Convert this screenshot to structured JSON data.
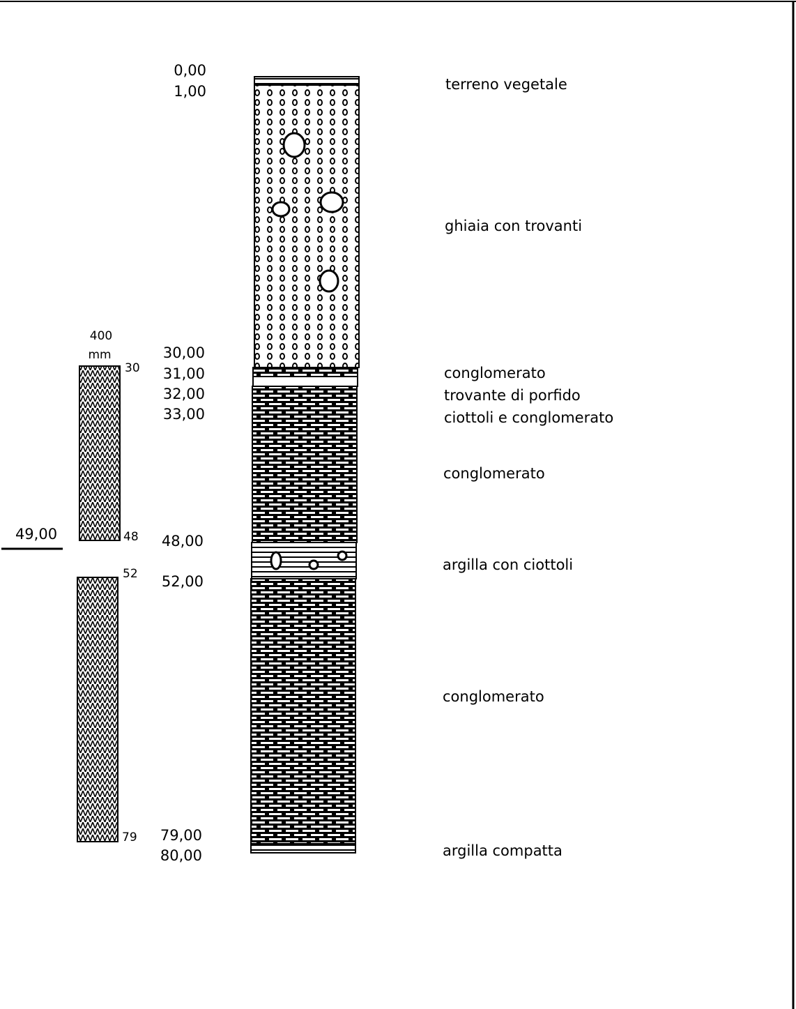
{
  "depths": [
    "0,00",
    "1,00",
    "30,00",
    "31,00",
    "32,00",
    "33,00",
    "48,00",
    "52,00",
    "79,00",
    "80,00"
  ],
  "layers": [
    "terreno vegetale",
    "ghiaia con trovanti",
    "conglomerato",
    "trovante di porfido",
    "ciottoli e conglomerato",
    "conglomerato",
    "argilla con ciottoli",
    "conglomerato",
    "argilla compatta"
  ],
  "screen": {
    "diameter": "400",
    "unit": "mm",
    "marks": [
      "30",
      "48",
      "52",
      "79"
    ],
    "water_level": "49,00"
  }
}
